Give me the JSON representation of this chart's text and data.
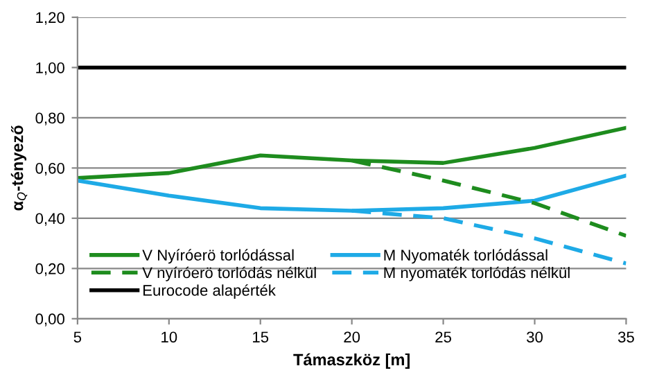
{
  "chart_data": {
    "type": "line",
    "xlabel": "Támaszköz [m]",
    "ylabel": "α$_{Q}$-tényező",
    "x": [
      5,
      10,
      15,
      20,
      25,
      30,
      35
    ],
    "series": [
      {
        "name": "V Nyíróerö torlódással",
        "color": "#1e8c1e",
        "values": [
          0.56,
          0.58,
          0.65,
          0.63,
          0.62,
          0.68,
          0.76
        ],
        "line_style": "solid"
      },
      {
        "name": "M Nyomaték torlódással",
        "color": "#1eaae6",
        "values": [
          0.55,
          0.49,
          0.44,
          0.43,
          0.44,
          0.47,
          0.57
        ],
        "line_style": "solid"
      },
      {
        "name": "V nyíróerö torlódás nélkül",
        "color": "#1e8c1e",
        "values": [
          null,
          null,
          null,
          0.63,
          0.55,
          0.46,
          0.33
        ],
        "line_style": "dashed"
      },
      {
        "name": "M nyomaték torlódás nélkül",
        "color": "#1eaae6",
        "values": [
          null,
          null,
          null,
          0.43,
          0.4,
          0.32,
          0.22
        ],
        "line_style": "dashed"
      },
      {
        "name": "Eurocode alapérték",
        "color": "#000000",
        "values": [
          1.0,
          1.0,
          1.0,
          1.0,
          1.0,
          1.0,
          1.0
        ],
        "line_style": "solid"
      }
    ],
    "xlim": [
      5,
      35
    ],
    "xticks": [
      5,
      10,
      15,
      20,
      25,
      30,
      35
    ],
    "ylim": [
      0,
      1.2
    ],
    "yticks": [
      {
        "value": 0,
        "label": "0,00"
      },
      {
        "value": 0.2,
        "label": "0,20"
      },
      {
        "value": 0.4,
        "label": "0,40"
      },
      {
        "value": 0.6,
        "label": "0,60"
      },
      {
        "value": 0.8,
        "label": "0,80"
      },
      {
        "value": 1.0,
        "label": "1,00"
      },
      {
        "value": 1.2,
        "label": "1,20"
      }
    ],
    "grid": "y",
    "legend": "bottom left",
    "marker": "none"
  }
}
